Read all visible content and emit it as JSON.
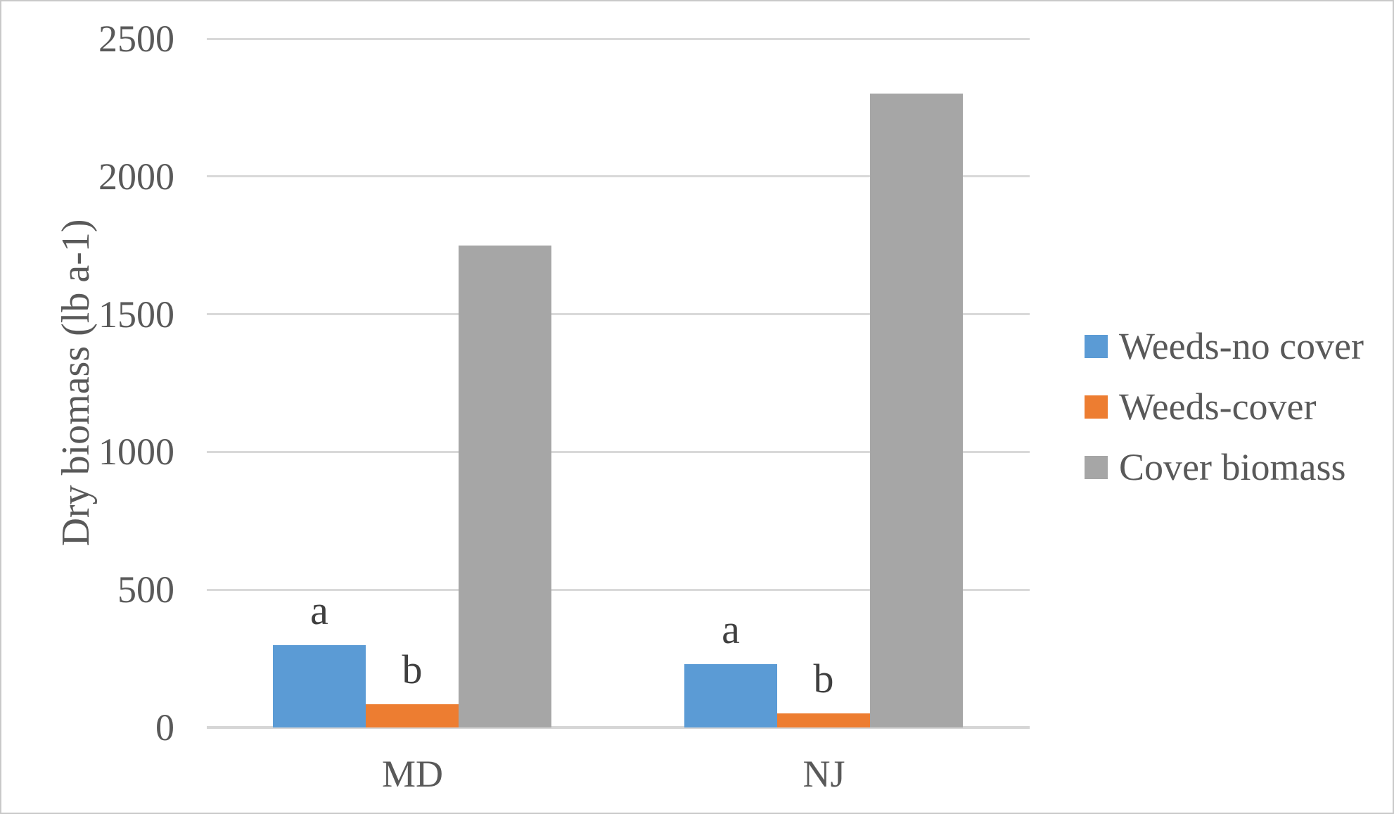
{
  "chart_data": {
    "type": "bar",
    "title": "",
    "xlabel": "",
    "ylabel": "Dry biomass (lb a-1)",
    "categories": [
      "MD",
      "NJ"
    ],
    "series": [
      {
        "name": "Weeds-no cover",
        "color": "#5B9BD5",
        "values": [
          300,
          230
        ],
        "bar_label": "a"
      },
      {
        "name": "Weeds-cover",
        "color": "#ED7D31",
        "values": [
          85,
          50
        ],
        "bar_label": "b"
      },
      {
        "name": "Cover biomass",
        "color": "#A6A6A6",
        "values": [
          1750,
          2300
        ],
        "bar_label": ""
      }
    ],
    "ylim": [
      0,
      2500
    ],
    "yticks": [
      0,
      500,
      1000,
      1500,
      2000,
      2500
    ],
    "grid": true,
    "legend_position": "right"
  },
  "colors": {
    "axis_text": "#595959",
    "annotation_text": "#3F3F3F",
    "gridline": "#D9D9D9",
    "axis_line": "#D6D6D6",
    "chart_border": "#C9C9C9",
    "background": "#FFFFFF"
  }
}
